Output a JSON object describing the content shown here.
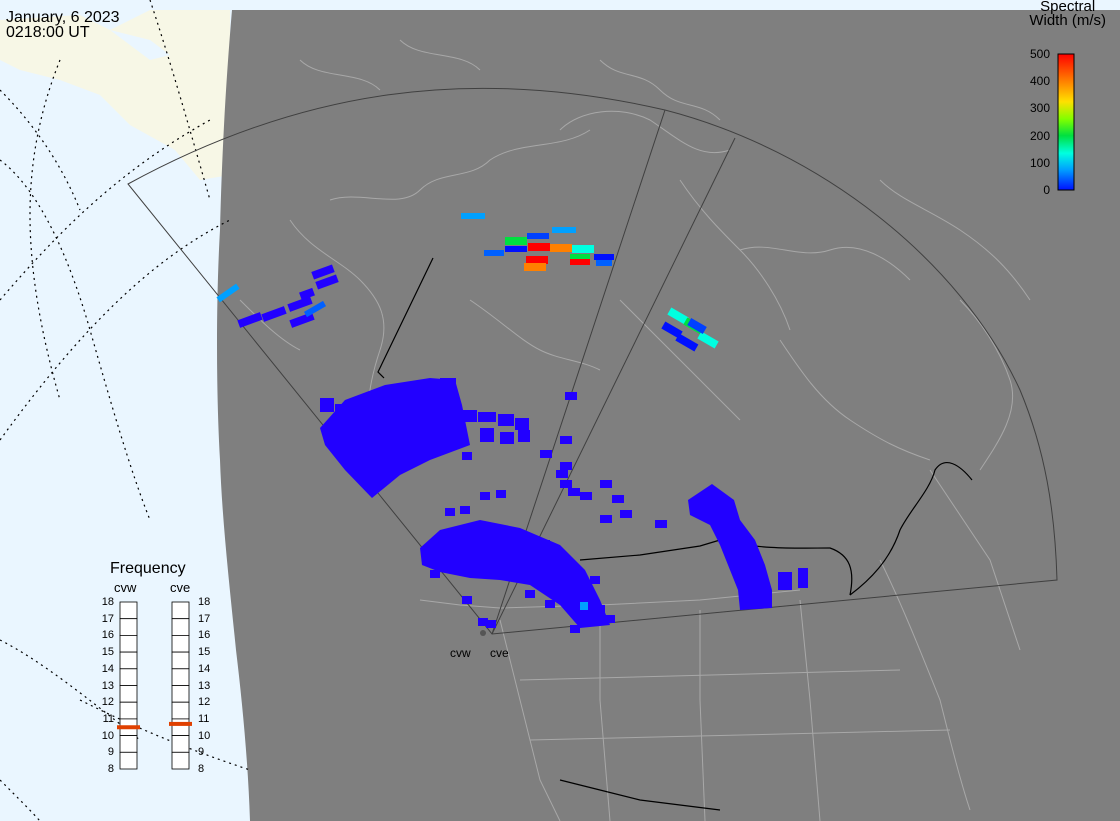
{
  "header": {
    "date": "January, 6 2023",
    "time": "0218:00 UT"
  },
  "colorbar": {
    "title_line1": "Spectral",
    "title_line2": "Width (m/s)",
    "ticks": [
      "500",
      "400",
      "300",
      "200",
      "100",
      "0"
    ],
    "range": [
      0,
      500
    ],
    "colors": [
      "#0010ff",
      "#00a0ff",
      "#00ffe0",
      "#00e040",
      "#80ff00",
      "#ffe000",
      "#ff8000",
      "#ff0000"
    ]
  },
  "radars": {
    "west_name": "cvw",
    "east_name": "cve"
  },
  "frequency_panel": {
    "title": "Frequency",
    "left_header": "cvw",
    "right_header": "cve",
    "scale": [
      "18",
      "17",
      "16",
      "15",
      "14",
      "13",
      "12",
      "11",
      "10",
      "9",
      "8"
    ],
    "cvw_value_mhz": 10.5,
    "cve_value_mhz": 10.7,
    "marker_color": "#e04000"
  },
  "colors": {
    "land": "#7f7f7f",
    "ocean": "#eaf6ff",
    "ice": "#f7f7e6",
    "coast": "#a8a8a8",
    "border": "#000000",
    "echo": "#2200ff"
  }
}
